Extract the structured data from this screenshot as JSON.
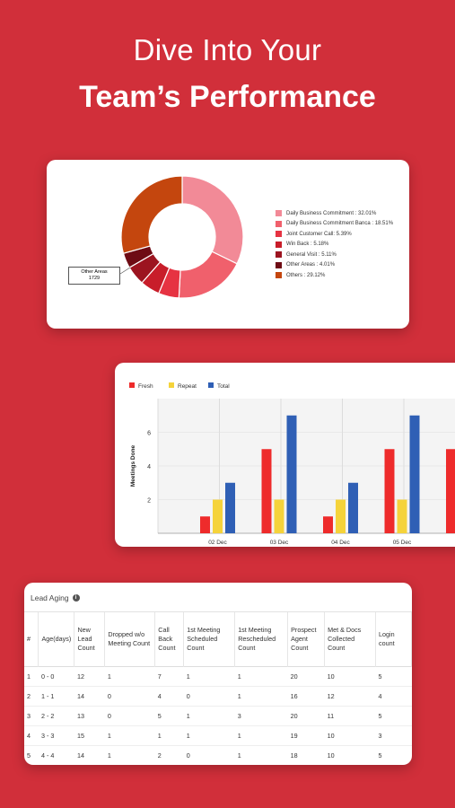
{
  "headline": {
    "line1": "Dive Into Your",
    "line2": "Team’s Performance"
  },
  "colors": {
    "background": "#d12f3a"
  },
  "donut": {
    "callout": {
      "label": "Other Areas",
      "value": "1729"
    },
    "slices": [
      {
        "label": "Daily Business Commitment : 32.01%",
        "value": 32.01,
        "color": "#f28a97"
      },
      {
        "label": "Daily Business Commitment Banca : 18.51%",
        "value": 18.51,
        "color": "#f0606c"
      },
      {
        "label": "Joint Customer Call: 5.39%",
        "value": 5.39,
        "color": "#e63342"
      },
      {
        "label": "Win Back : 5.18%",
        "value": 5.18,
        "color": "#c81d2a"
      },
      {
        "label": "General Visit : 5.11%",
        "value": 5.11,
        "color": "#9c1420"
      },
      {
        "label": "Other Areas : 4.01%",
        "value": 4.01,
        "color": "#6e0b14"
      },
      {
        "label": "Others : 29.12%",
        "value": 29.12,
        "color": "#c4460e"
      }
    ]
  },
  "chart_data": {
    "type": "bar",
    "ylabel": "Meetings Done",
    "categories": [
      "02 Dec",
      "03 Dec",
      "04 Dec",
      "05 Dec"
    ],
    "ylim": [
      0,
      8
    ],
    "yticks": [
      "2",
      "4",
      "6"
    ],
    "series": [
      {
        "name": "Fresh",
        "color": "#ee2b2b",
        "values": [
          1,
          5,
          1,
          5
        ]
      },
      {
        "name": "Repeat",
        "color": "#f5d33b",
        "values": [
          2,
          2,
          2,
          2
        ]
      },
      {
        "name": "Total",
        "color": "#2f5fb5",
        "values": [
          3,
          7,
          3,
          7
        ]
      }
    ],
    "partial_next_value": 5,
    "legend_position": "top-left"
  },
  "table": {
    "title": "Lead Aging",
    "info_icon": "i",
    "headers": [
      "#",
      "Age(days)",
      "New Lead Count",
      "Dropped w/o Meeting Count",
      "Call Back Count",
      "1st Meeting Scheduled Count",
      "1st Meeting Rescheduled Count",
      "Prospect Agent Count",
      "Met & Docs Collected Count",
      "Login count"
    ],
    "rows": [
      [
        "1",
        "0 - 0",
        "12",
        "1",
        "7",
        "1",
        "1",
        "20",
        "10",
        "5"
      ],
      [
        "2",
        "1 - 1",
        "14",
        "0",
        "4",
        "0",
        "1",
        "16",
        "12",
        "4"
      ],
      [
        "3",
        "2 - 2",
        "13",
        "0",
        "5",
        "1",
        "3",
        "20",
        "11",
        "5"
      ],
      [
        "4",
        "3 - 3",
        "15",
        "1",
        "1",
        "1",
        "1",
        "19",
        "10",
        "3"
      ],
      [
        "5",
        "4 - 4",
        "14",
        "1",
        "2",
        "0",
        "1",
        "18",
        "10",
        "5"
      ]
    ]
  }
}
